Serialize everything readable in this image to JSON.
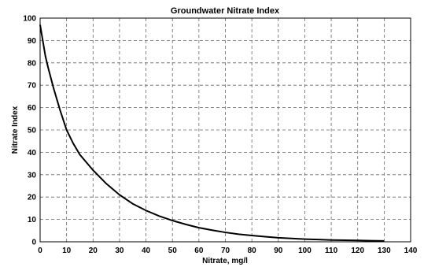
{
  "chart_data": {
    "type": "line",
    "title": "Groundwater Nitrate Index",
    "xlabel": "Nitrate, mg/l",
    "ylabel": "Nitrate Index",
    "xlim": [
      0,
      140
    ],
    "ylim": [
      0,
      100
    ],
    "x_ticks": [
      0,
      10,
      20,
      30,
      40,
      50,
      60,
      70,
      80,
      90,
      100,
      110,
      120,
      130,
      140
    ],
    "y_ticks": [
      0,
      10,
      20,
      30,
      40,
      50,
      60,
      70,
      80,
      90,
      100
    ],
    "grid": true,
    "series": [
      {
        "color": "#000000",
        "x": [
          0,
          1,
          2,
          3,
          5,
          7.5,
          10,
          12.5,
          15,
          20,
          25,
          30,
          35,
          40,
          45,
          50,
          55,
          60,
          65,
          70,
          75,
          80,
          85,
          90,
          95,
          100,
          105,
          110,
          115,
          120,
          125,
          130
        ],
        "y": [
          97,
          90,
          83,
          78,
          69,
          59,
          50,
          44,
          39,
          32,
          26,
          21,
          17,
          14,
          11.5,
          9.5,
          7.8,
          6.3,
          5.2,
          4.2,
          3.4,
          2.8,
          2.3,
          1.8,
          1.5,
          1.2,
          1.0,
          0.8,
          0.7,
          0.6,
          0.5,
          0.4
        ]
      }
    ]
  }
}
